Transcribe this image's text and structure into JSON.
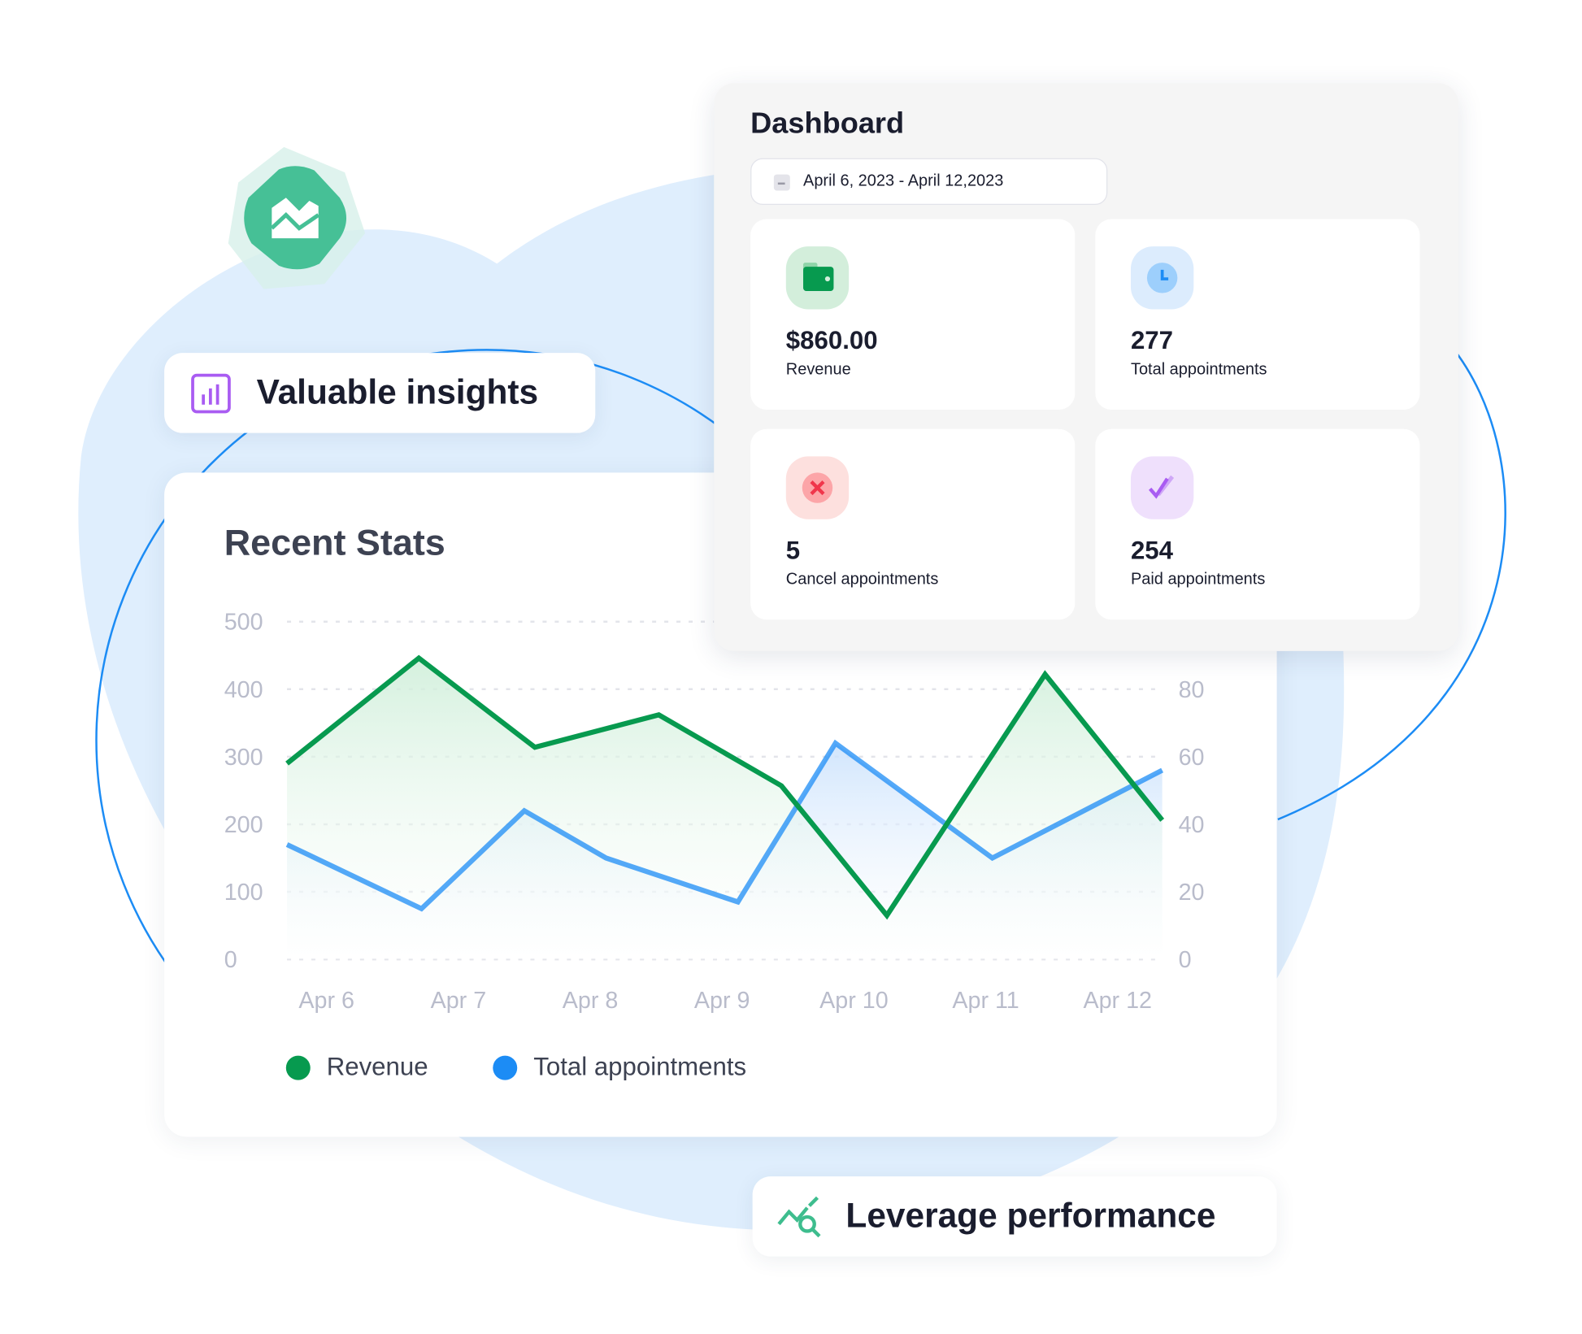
{
  "badges": {
    "insights": "Valuable insights",
    "performance": "Leverage performance"
  },
  "dashboard": {
    "title": "Dashboard",
    "date_range": "April 6, 2023 - April 12,2023",
    "stats": [
      {
        "value": "$860.00",
        "label": "Revenue",
        "icon": "wallet-icon",
        "color": "#079a4f",
        "bg": "#d3eedb"
      },
      {
        "value": "277",
        "label": "Total appointments",
        "icon": "clock-icon",
        "color": "#1c8cf5",
        "bg": "#dcecfd"
      },
      {
        "value": "5",
        "label": "Cancel appointments",
        "icon": "x-circle-icon",
        "color": "#f0364b",
        "bg": "#fde0de"
      },
      {
        "value": "254",
        "label": "Paid appointments",
        "icon": "double-check-icon",
        "color": "#a95cf2",
        "bg": "#efe0fc"
      }
    ]
  },
  "chart_data": {
    "type": "area",
    "title": "Recent Stats",
    "categories": [
      "Apr 6",
      "Apr 7",
      "Apr 8",
      "Apr 9",
      "Apr 10",
      "Apr 11",
      "Apr 12"
    ],
    "y_left": {
      "ticks": [
        "0",
        "100",
        "200",
        "300",
        "400",
        "500"
      ],
      "range": [
        0,
        500
      ]
    },
    "y_right": {
      "ticks": [
        "0",
        "20",
        "40",
        "60",
        "80"
      ],
      "range": [
        0,
        100
      ]
    },
    "grid": "dashed horizontal",
    "legend": "bottom-left",
    "series": [
      {
        "name": "Revenue",
        "axis": "left",
        "color": "#079a4f",
        "x": [
          5.7,
          6.7,
          7.58,
          8.52,
          9.45,
          10.25,
          11.45,
          12.34
        ],
        "values": [
          290,
          446,
          314,
          362,
          257,
          65,
          422,
          206
        ]
      },
      {
        "name": "Total appointments",
        "axis": "right",
        "color": "#1c8cf5",
        "x": [
          5.7,
          6.72,
          7.5,
          8.12,
          9.12,
          9.86,
          11.05,
          12.34
        ],
        "values": [
          34,
          15,
          44,
          30,
          17,
          64,
          30,
          56
        ]
      }
    ]
  }
}
